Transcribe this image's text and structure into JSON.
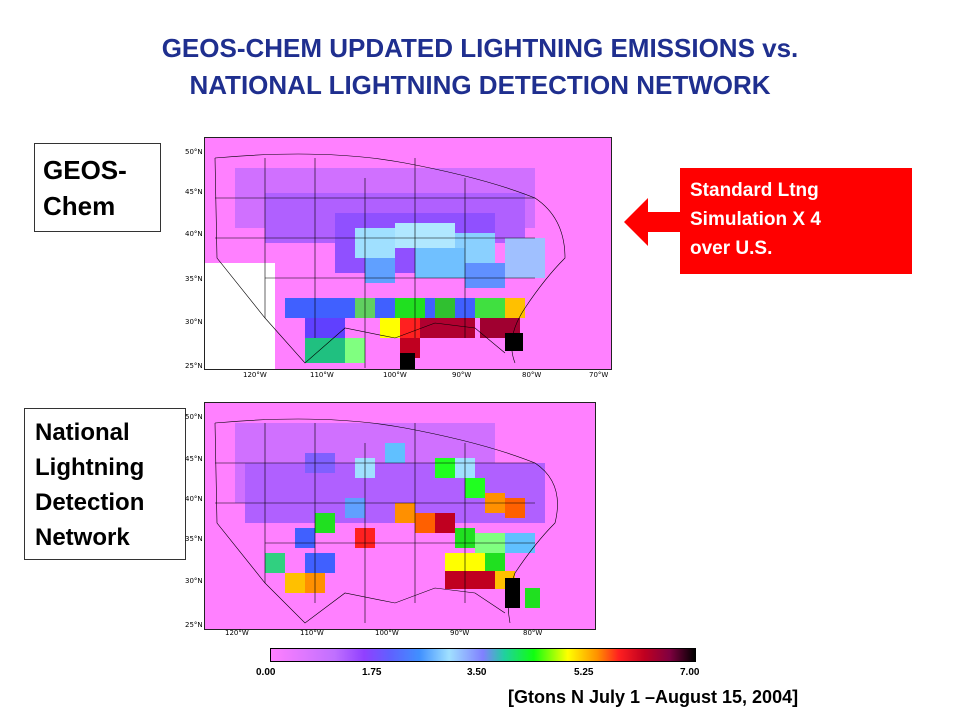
{
  "title": {
    "line1": "GEOS-CHEM UPDATED LIGHTNING EMISSIONS vs.",
    "line2": "NATIONAL LIGHTNING DETECTION NETWORK"
  },
  "labels": {
    "geos_line1": "GEOS-",
    "geos_line2": "Chem",
    "nldn_line1": "National",
    "nldn_line2": "Lightning",
    "nldn_line3": "Detection",
    "nldn_line4": "Network"
  },
  "callout": {
    "line1": "Standard Ltng",
    "line2": "Simulation X 4",
    "line3": "over U.S.",
    "color": "#ff0000"
  },
  "top_map": {
    "lat_ticks": [
      "50°N",
      "45°N",
      "40°N",
      "35°N",
      "30°N",
      "25°N"
    ],
    "lon_ticks": [
      "120°W",
      "110°W",
      "100°W",
      "90°W",
      "80°W",
      "70°W"
    ]
  },
  "bottom_map": {
    "lat_ticks": [
      "50°N",
      "45°N",
      "40°N",
      "35°N",
      "30°N",
      "25°N"
    ],
    "lon_ticks": [
      "120°W",
      "110°W",
      "100°W",
      "90°W",
      "80°W"
    ]
  },
  "colorbar": {
    "labels": [
      "0.00",
      "1.75",
      "3.50",
      "5.25",
      "7.00"
    ]
  },
  "units": "[Gtons N July 1 –August 15, 2004]",
  "colors": {
    "title": "#1f2f8f",
    "background_pink": "#ff80ff"
  }
}
